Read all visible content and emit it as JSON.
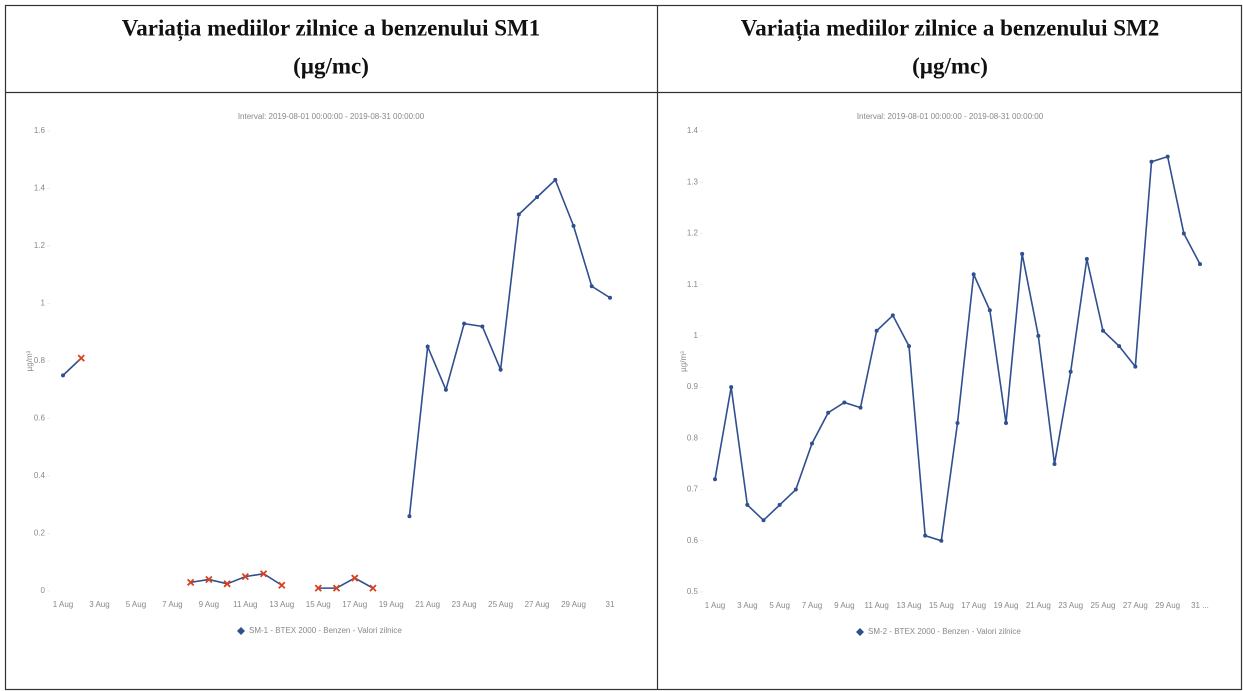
{
  "chart_data": [
    {
      "type": "line",
      "title": "Variația mediilor zilnice a benzenului SM1",
      "title_unit": "(µg/mc)",
      "subtitle": "Interval: 2019-08-01 00:00:00 - 2019-08-31 00:00:00",
      "y_label": "µg/m³",
      "categories": [
        "1 Aug",
        null,
        "3 Aug",
        null,
        "5 Aug",
        null,
        "7 Aug",
        null,
        "9 Aug",
        null,
        "11 Aug",
        null,
        "13 Aug",
        null,
        "15 Aug",
        null,
        "17 Aug",
        null,
        "19 Aug",
        null,
        "21 Aug",
        null,
        "23 Aug",
        null,
        "25 Aug",
        null,
        "27 Aug",
        null,
        "29 Aug",
        null,
        "31"
      ],
      "series": [
        {
          "name": "SM-1 - BTEX 2000 - Benzen - Valori zilnice",
          "color": "#2f4f8f",
          "values": [
            0.75,
            0.81,
            null,
            null,
            null,
            null,
            null,
            0.03,
            0.04,
            0.025,
            0.05,
            0.06,
            0.02,
            null,
            0.01,
            0.01,
            0.045,
            0.01,
            null,
            0.26,
            0.85,
            0.7,
            0.93,
            0.92,
            0.77,
            1.31,
            1.37,
            1.43,
            1.27,
            1.06,
            1.02
          ],
          "flag_color": "#d9411e",
          "flagged": [
            false,
            true,
            false,
            false,
            false,
            false,
            false,
            true,
            true,
            true,
            true,
            true,
            true,
            false,
            true,
            true,
            true,
            true,
            false,
            false,
            false,
            false,
            false,
            false,
            false,
            false,
            false,
            false,
            false,
            false,
            false
          ]
        }
      ],
      "ylim": [
        0,
        1.6
      ],
      "yticks": [
        0,
        0.2,
        0.4,
        0.6,
        0.8,
        1,
        1.2,
        1.4,
        1.6
      ],
      "grid": false
    },
    {
      "type": "line",
      "title": "Variația mediilor zilnice a benzenului SM2",
      "title_unit": "(µg/mc)",
      "subtitle": "Interval: 2019-08-01 00:00:00 - 2019-08-31 00:00:00",
      "y_label": "µg/m³",
      "categories": [
        "1 Aug",
        null,
        "3 Aug",
        null,
        "5 Aug",
        null,
        "7 Aug",
        null,
        "9 Aug",
        null,
        "11 Aug",
        null,
        "13 Aug",
        null,
        "15 Aug",
        null,
        "17 Aug",
        null,
        "19 Aug",
        null,
        "21 Aug",
        null,
        "23 Aug",
        null,
        "25 Aug",
        null,
        "27 Aug",
        null,
        "29 Aug",
        null,
        "31 ..."
      ],
      "series": [
        {
          "name": "SM-2 - BTEX 2000 - Benzen - Valori zilnice",
          "color": "#2f4f8f",
          "values": [
            0.72,
            0.9,
            0.67,
            0.64,
            0.67,
            0.7,
            0.79,
            0.85,
            0.87,
            0.86,
            1.01,
            1.04,
            0.98,
            0.61,
            0.6,
            0.83,
            1.12,
            1.05,
            0.83,
            1.16,
            1.0,
            0.75,
            0.93,
            1.15,
            1.01,
            0.98,
            0.94,
            1.34,
            1.35,
            1.2,
            1.14
          ]
        }
      ],
      "ylim": [
        0.5,
        1.4
      ],
      "yticks": [
        0.5,
        0.6,
        0.7,
        0.8,
        0.9,
        1,
        1.1,
        1.2,
        1.3,
        1.4
      ],
      "grid": false
    }
  ]
}
